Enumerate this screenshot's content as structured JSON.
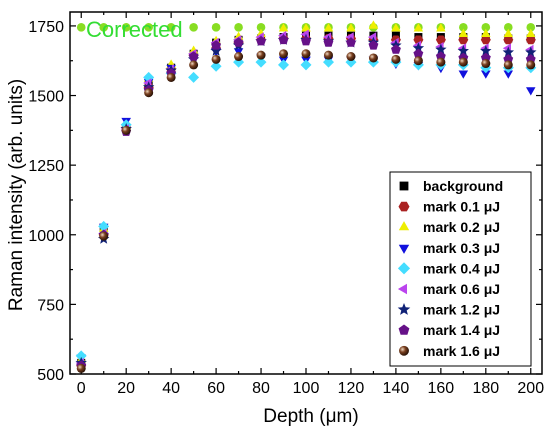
{
  "chart_data": {
    "type": "scatter",
    "title": "Corrected",
    "title_color": "#33dd33",
    "xlabel": "Depth (μm)",
    "ylabel": "Raman intensity (arb. units)",
    "xlim": [
      -5,
      205
    ],
    "ylim": [
      500,
      1800
    ],
    "x_ticks": [
      0,
      10,
      20,
      30,
      40,
      50,
      60,
      70,
      80,
      90,
      100,
      110,
      120,
      130,
      140,
      150,
      160,
      170,
      180,
      190,
      200
    ],
    "x_tick_labels": [
      "0",
      "20",
      "40",
      "60",
      "80",
      "100",
      "120",
      "140",
      "160",
      "180",
      "200"
    ],
    "y_ticks": [
      500,
      750,
      1000,
      1250,
      1500,
      1750
    ],
    "grid": false,
    "legend_position": "bottom-right",
    "x": [
      0,
      10,
      20,
      30,
      40,
      50,
      60,
      70,
      80,
      90,
      100,
      110,
      120,
      130,
      140,
      150,
      160,
      170,
      180,
      190,
      200
    ],
    "reference": {
      "name": "",
      "color": "#88dd22",
      "marker": "circle",
      "values": [
        1745,
        1745,
        1745,
        1745,
        1745,
        1745,
        1745,
        1745,
        1745,
        1745,
        1745,
        1745,
        1745,
        1745,
        1745,
        1745,
        1745,
        1745,
        1745,
        1745,
        1745
      ]
    },
    "series": [
      {
        "name": "background",
        "color": "#000000",
        "marker": "square",
        "values": [
          540,
          1025,
          1385,
          1545,
          1600,
          1650,
          1690,
          1700,
          1705,
          1710,
          1715,
          1715,
          1715,
          1715,
          1715,
          1710,
          1710,
          1710,
          1710,
          1705,
          1705
        ]
      },
      {
        "name": "mark 0.1 μJ",
        "color": "#aa2222",
        "marker": "hexagon",
        "values": [
          530,
          1000,
          1385,
          1530,
          1595,
          1645,
          1670,
          1690,
          1700,
          1705,
          1705,
          1705,
          1705,
          1700,
          1700,
          1700,
          1700,
          1700,
          1700,
          1700,
          1700
        ]
      },
      {
        "name": "mark 0.2 μJ",
        "color": "#eeee00",
        "marker": "triangle-up",
        "values": [
          550,
          1020,
          1390,
          1560,
          1610,
          1660,
          1695,
          1710,
          1720,
          1740,
          1740,
          1740,
          1740,
          1750,
          1740,
          1740,
          1740,
          1720,
          1720,
          1720,
          1720
        ]
      },
      {
        "name": "mark 0.3 μJ",
        "color": "#1111dd",
        "marker": "triangle-down",
        "values": [
          560,
          1030,
          1410,
          1550,
          1600,
          1640,
          1660,
          1660,
          1640,
          1630,
          1630,
          1630,
          1630,
          1630,
          1615,
          1610,
          1600,
          1580,
          1580,
          1580,
          1520
        ]
      },
      {
        "name": "mark 0.4 μJ",
        "color": "#44ddff",
        "marker": "diamond",
        "values": [
          565,
          1030,
          1395,
          1565,
          1580,
          1565,
          1605,
          1620,
          1620,
          1610,
          1610,
          1620,
          1620,
          1620,
          1620,
          1610,
          1610,
          1610,
          1600,
          1600,
          1600
        ]
      },
      {
        "name": "mark 0.6 μJ",
        "color": "#bb44ee",
        "marker": "triangle-left",
        "values": [
          540,
          1005,
          1380,
          1545,
          1595,
          1650,
          1690,
          1700,
          1710,
          1715,
          1720,
          1710,
          1710,
          1710,
          1690,
          1680,
          1675,
          1670,
          1670,
          1670,
          1665
        ]
      },
      {
        "name": "mark 1.2 μJ",
        "color": "#112277",
        "marker": "star",
        "values": [
          540,
          985,
          1380,
          1530,
          1590,
          1630,
          1660,
          1680,
          1695,
          1700,
          1700,
          1695,
          1690,
          1690,
          1680,
          1670,
          1665,
          1660,
          1660,
          1655,
          1655
        ]
      },
      {
        "name": "mark 1.4 μJ",
        "color": "#661188",
        "marker": "pentagon",
        "values": [
          530,
          1000,
          1370,
          1520,
          1580,
          1640,
          1680,
          1690,
          1695,
          1700,
          1695,
          1690,
          1690,
          1680,
          1665,
          1650,
          1640,
          1635,
          1635,
          1630,
          1630
        ]
      },
      {
        "name": "mark 1.6 μJ",
        "color": "#774422",
        "marker": "sphere",
        "values": [
          520,
          995,
          1375,
          1510,
          1565,
          1610,
          1630,
          1640,
          1645,
          1650,
          1650,
          1645,
          1640,
          1635,
          1630,
          1625,
          1620,
          1620,
          1615,
          1610,
          1610
        ]
      }
    ]
  }
}
